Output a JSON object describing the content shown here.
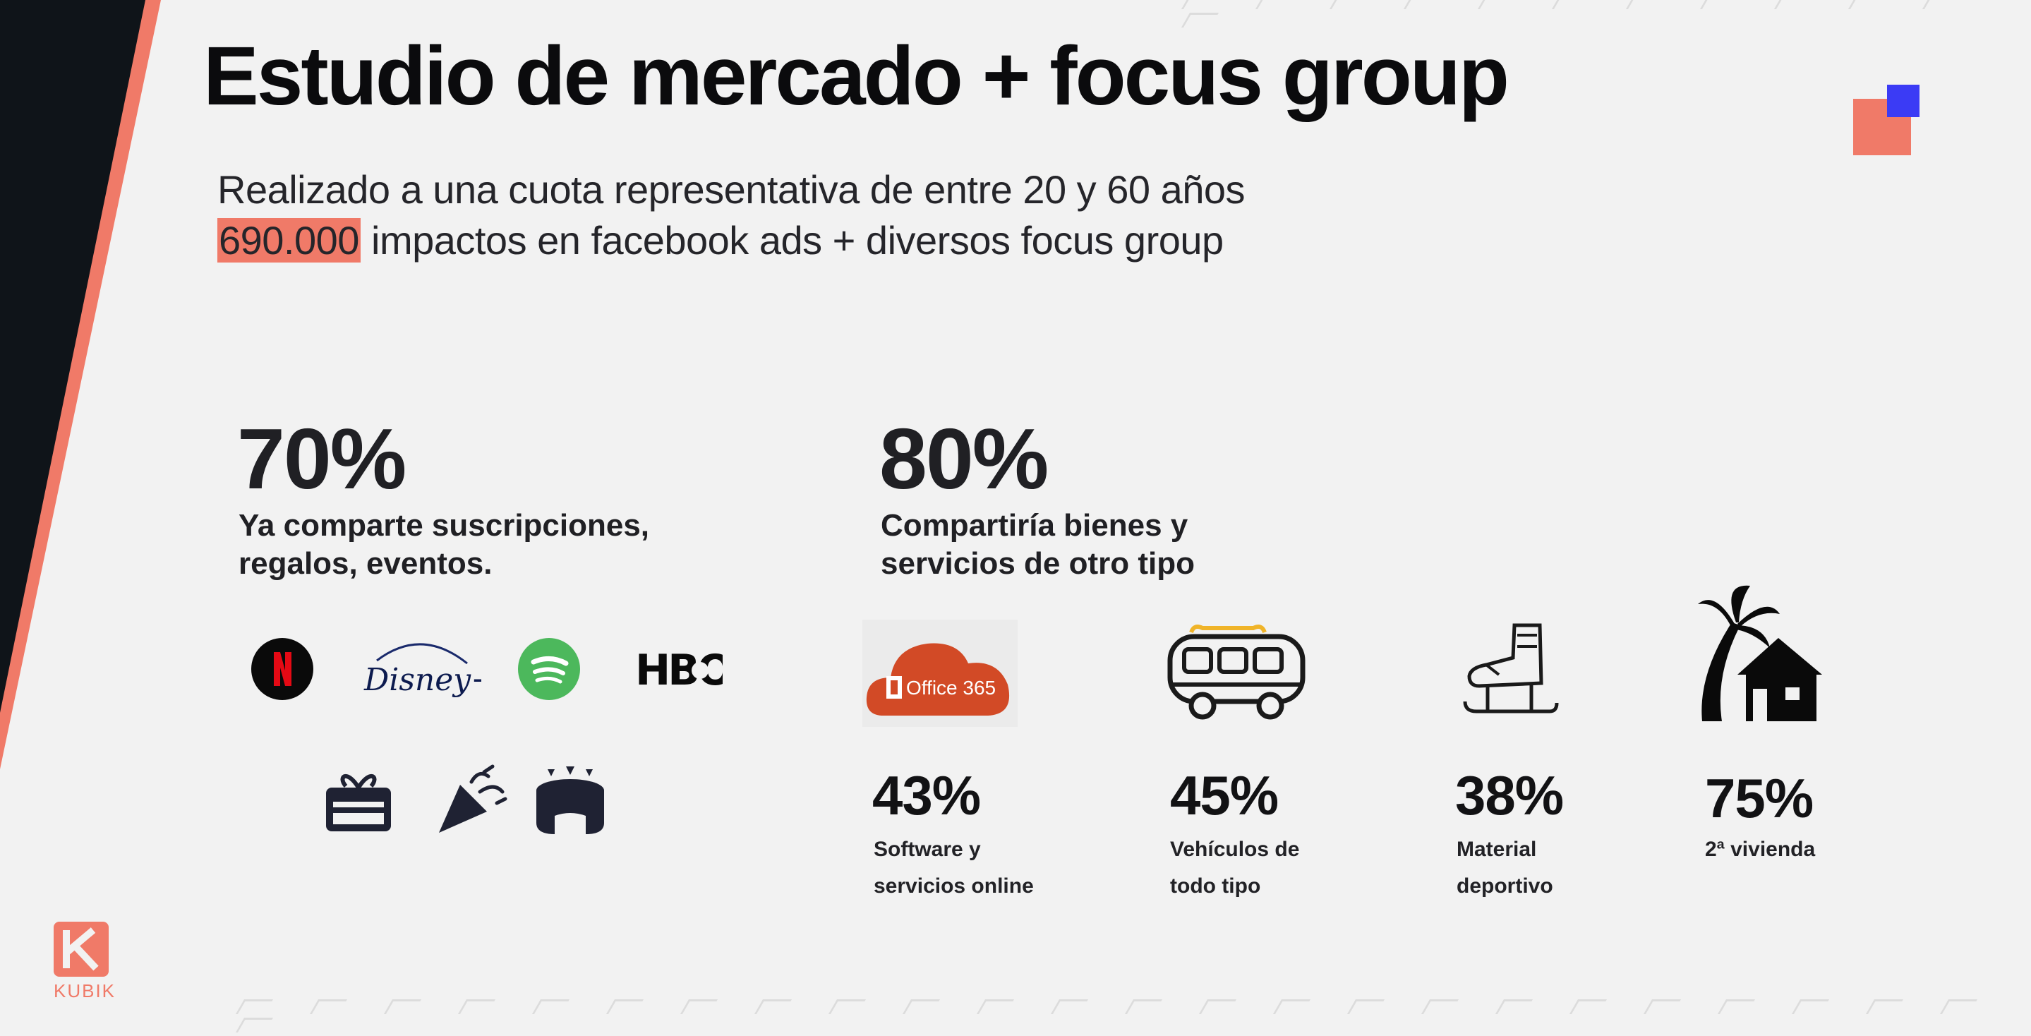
{
  "header": {
    "title": "Estudio de mercado + focus group"
  },
  "intro": {
    "line1": "Realizado a una cuota representativa de entre 20 y 60 años",
    "highlight": "690.000",
    "line2_rest": " impactos en facebook ads + diversos focus group"
  },
  "left_stat": {
    "percent": "70%",
    "description_line1": "Ya comparte suscripciones,",
    "description_line2": "regalos, eventos.",
    "brand_icons": [
      "netflix-logo",
      "disney-plus-logo",
      "spotify-logo",
      "hbo-logo"
    ],
    "bottom_icons": [
      "gift-card-icon",
      "party-popper-icon",
      "stadium-icon"
    ],
    "disney_text": "Disney+",
    "hbo_text": "HBO"
  },
  "right_stat": {
    "percent": "80%",
    "description_line1": "Compartiría bienes y",
    "description_line2": "servicios de otro tipo",
    "office_text": "Office 365",
    "categories": [
      {
        "percent": "43%",
        "label_line1": "Software y",
        "label_line2": "servicios online",
        "icon": "office-365-cloud-icon"
      },
      {
        "percent": "45%",
        "label_line1": "Vehículos de",
        "label_line2": "todo tipo",
        "icon": "van-icon"
      },
      {
        "percent": "38%",
        "label_line1": "Material",
        "label_line2": "deportivo",
        "icon": "ice-skate-icon"
      },
      {
        "percent": "75%",
        "label_line1": "2ª vivienda",
        "label_line2": "",
        "icon": "palm-house-icon"
      }
    ]
  },
  "brand": {
    "logo_text": "KUBIK"
  },
  "colors": {
    "accent": "#f07a68",
    "dark": "#0f1419",
    "square_blue": "#3b3bf5",
    "background": "#f2f2f2"
  }
}
